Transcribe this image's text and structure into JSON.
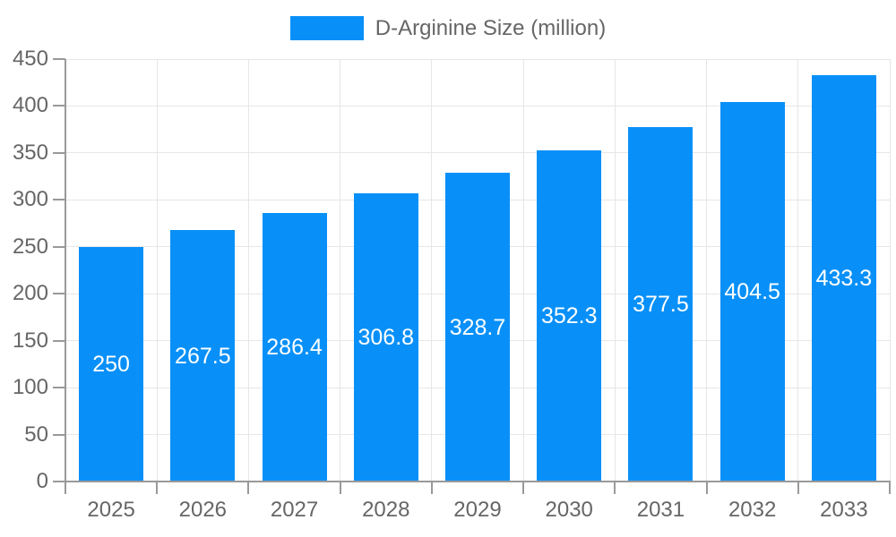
{
  "chart_data": {
    "type": "bar",
    "title": "D-Arginine Size (million)",
    "series": [
      {
        "name": "D-Arginine Size (million)",
        "values": [
          250,
          267.5,
          286.4,
          306.8,
          328.7,
          352.3,
          377.5,
          404.5,
          433.3
        ]
      }
    ],
    "categories": [
      "2025",
      "2026",
      "2027",
      "2028",
      "2029",
      "2030",
      "2031",
      "2032",
      "2033"
    ],
    "xlabel": "",
    "ylabel": "",
    "ylim": [
      0,
      450
    ],
    "ytick_step": 50,
    "grid": true,
    "legend_position": "top",
    "colors": {
      "bar": "#0890f8",
      "value_label": "#ffffff",
      "grid": "#e6e6e6",
      "axis": "#999999",
      "tick_label": "#666666",
      "legend_text": "#666666"
    }
  }
}
